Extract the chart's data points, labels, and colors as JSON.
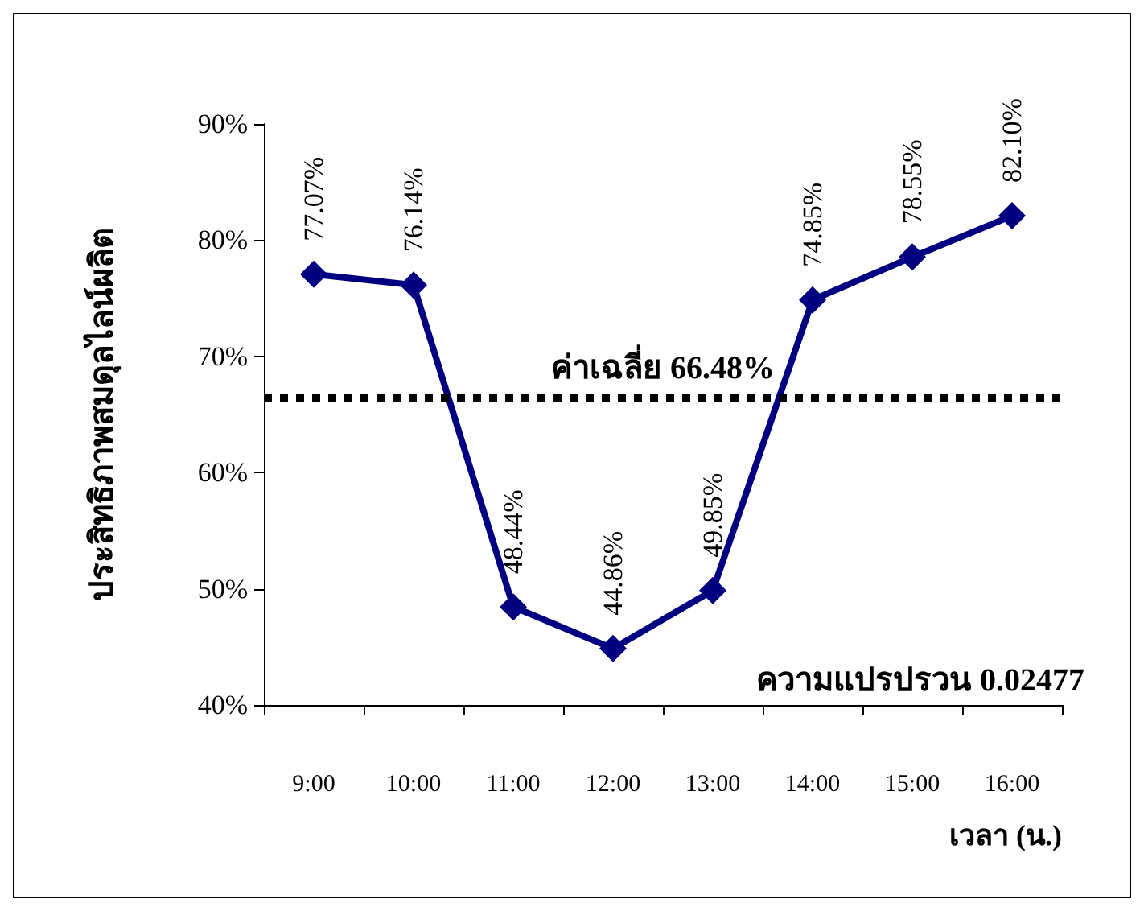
{
  "chart_data": {
    "type": "line",
    "ylabel": "ประสิทธิภาพสมดุลไลน์ผลิต",
    "xlabel": "เวลา (น.)",
    "categories": [
      "9:00",
      "10:00",
      "11:00",
      "12:00",
      "13:00",
      "14:00",
      "15:00",
      "16:00"
    ],
    "series": [
      {
        "color": "#000080",
        "values": [
          77.07,
          76.14,
          48.44,
          44.86,
          49.85,
          74.85,
          78.55,
          82.1
        ],
        "value_labels": [
          "77.07%",
          "76.14%",
          "48.44%",
          "44.86%",
          "49.85%",
          "74.85%",
          "78.55%",
          "82.10%"
        ]
      }
    ],
    "ylim": [
      40,
      90
    ],
    "yticks": [
      {
        "value": 40,
        "label": "40%"
      },
      {
        "value": 50,
        "label": "50%"
      },
      {
        "value": 60,
        "label": "60%"
      },
      {
        "value": 70,
        "label": "70%"
      },
      {
        "value": 80,
        "label": "80%"
      },
      {
        "value": 90,
        "label": "90%"
      }
    ],
    "ref_lines": [
      {
        "axis": "y",
        "value": 66.48,
        "label": "ค่าเฉลี่ย 66.48%",
        "color": "#000000",
        "line_style": "dotted"
      }
    ],
    "annotations": [
      "ความแปรปรวน 0.02477"
    ],
    "marker": "diamond",
    "line_style": "solid",
    "grid": false
  }
}
